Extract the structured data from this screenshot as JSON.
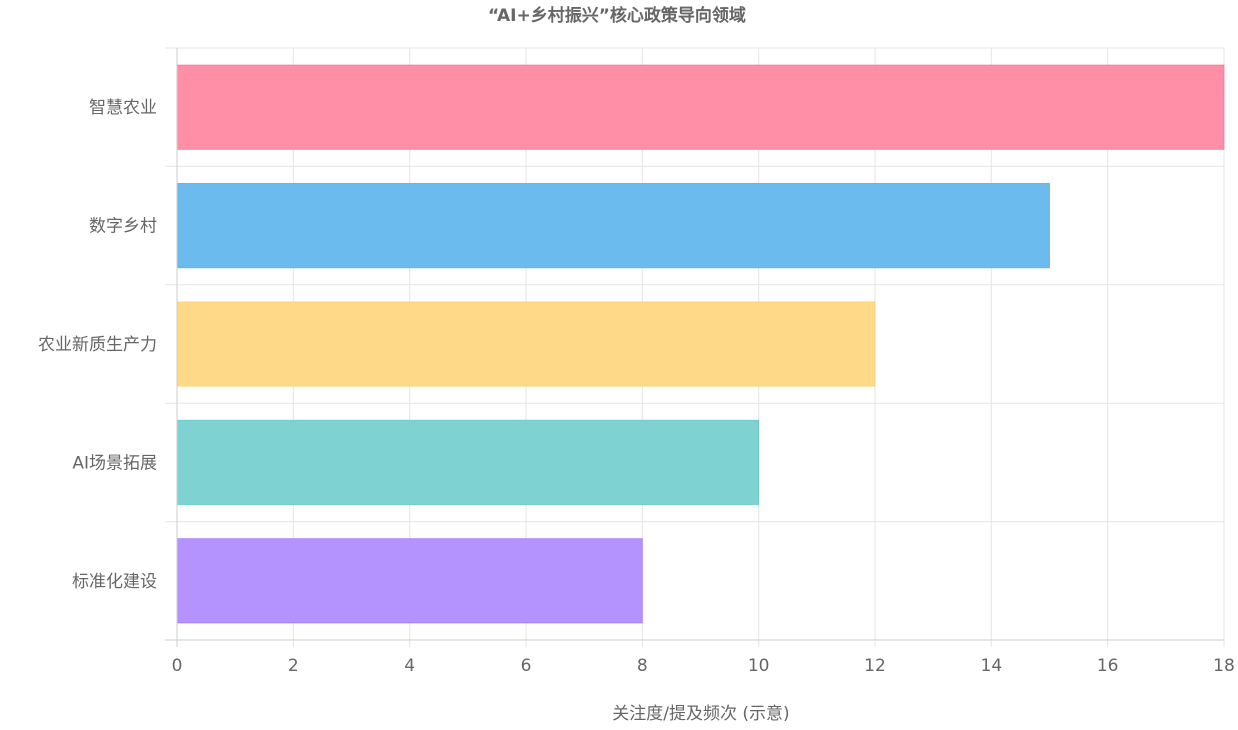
{
  "chart_data": {
    "type": "bar",
    "orientation": "horizontal",
    "title": "“AI+乡村振兴”核心政策导向领域",
    "xlabel": "关注度/提及频次 (示意)",
    "ylabel": "",
    "categories": [
      "智慧农业",
      "数字乡村",
      "农业新质生产力",
      "AI场景拓展",
      "标准化建设"
    ],
    "values": [
      18,
      15,
      12,
      10,
      8
    ],
    "xlim": [
      0,
      18
    ],
    "x_ticks": [
      "0",
      "2",
      "4",
      "6",
      "8",
      "10",
      "12",
      "14",
      "16",
      "18"
    ],
    "grid": true,
    "legend": "none",
    "colors": {
      "bar_fills": [
        "#ff8fa6",
        "#6cbbee",
        "#fed987",
        "#7fd2d2",
        "#b593fe"
      ],
      "bar_strokes": [
        "#ff6384",
        "#36a2eb",
        "#ffcd56",
        "#4bc0c0",
        "#9966ff"
      ],
      "grid": "#e5e5e5",
      "axis": "#cccccc",
      "text": "#666666"
    }
  }
}
